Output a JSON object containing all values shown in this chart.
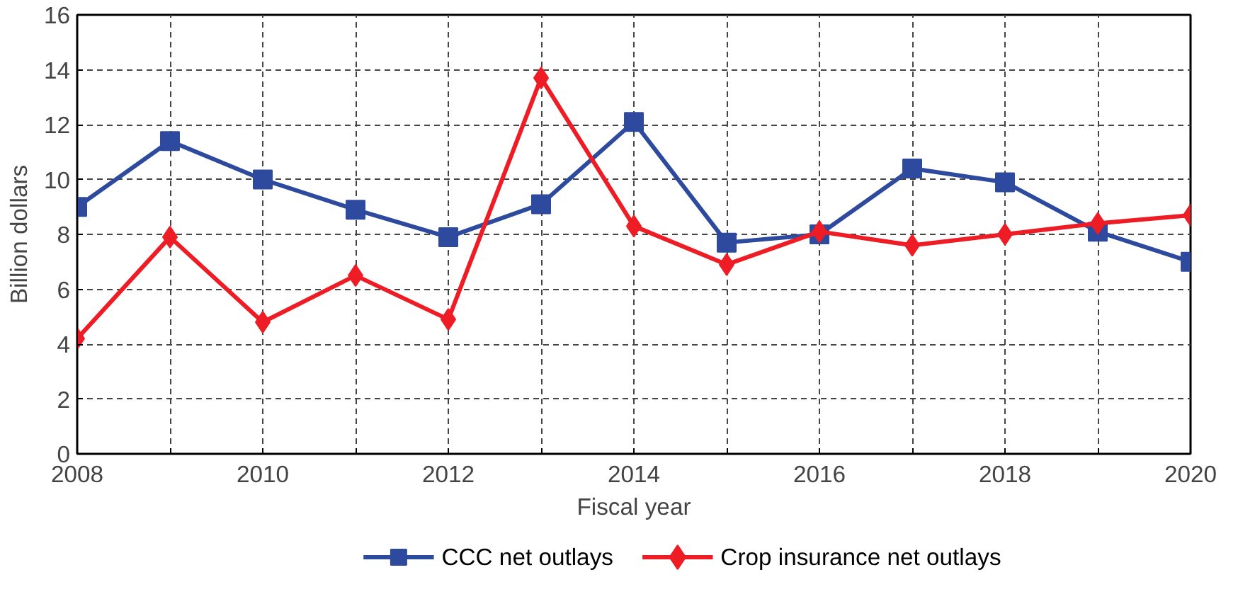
{
  "chart_data": {
    "type": "line",
    "xlabel": "Fiscal year",
    "ylabel": "Billion dollars",
    "x": [
      2008,
      2009,
      2010,
      2011,
      2012,
      2013,
      2014,
      2015,
      2016,
      2017,
      2018,
      2019,
      2020
    ],
    "series": [
      {
        "name": "CCC net outlays",
        "color": "#2e4a9e",
        "marker": "square",
        "values": [
          9.0,
          11.4,
          10.0,
          8.9,
          7.9,
          9.1,
          12.1,
          7.7,
          8.0,
          10.4,
          9.9,
          8.1,
          7.0
        ]
      },
      {
        "name": "Crop insurance net outlays",
        "color": "#ee1c25",
        "marker": "diamond",
        "values": [
          4.2,
          7.9,
          4.8,
          6.5,
          4.9,
          13.7,
          8.3,
          6.9,
          8.1,
          7.6,
          8.0,
          8.4,
          8.7
        ]
      }
    ],
    "xlim": [
      2008,
      2020
    ],
    "xticks": [
      2008,
      {
        "value": 2009,
        "label": null
      },
      2010,
      {
        "value": 2011,
        "label": null
      },
      2012,
      {
        "value": 2013,
        "label": null
      },
      2014,
      {
        "value": 2015,
        "label": null
      },
      2016,
      {
        "value": 2017,
        "label": null
      },
      2018,
      {
        "value": 2019,
        "label": null
      },
      2020
    ],
    "ylim": [
      0,
      16
    ],
    "yticks": [
      0,
      2,
      4,
      6,
      8,
      10,
      12,
      14,
      16
    ],
    "grid": true,
    "legend": "bottom",
    "line_style": "solid"
  }
}
